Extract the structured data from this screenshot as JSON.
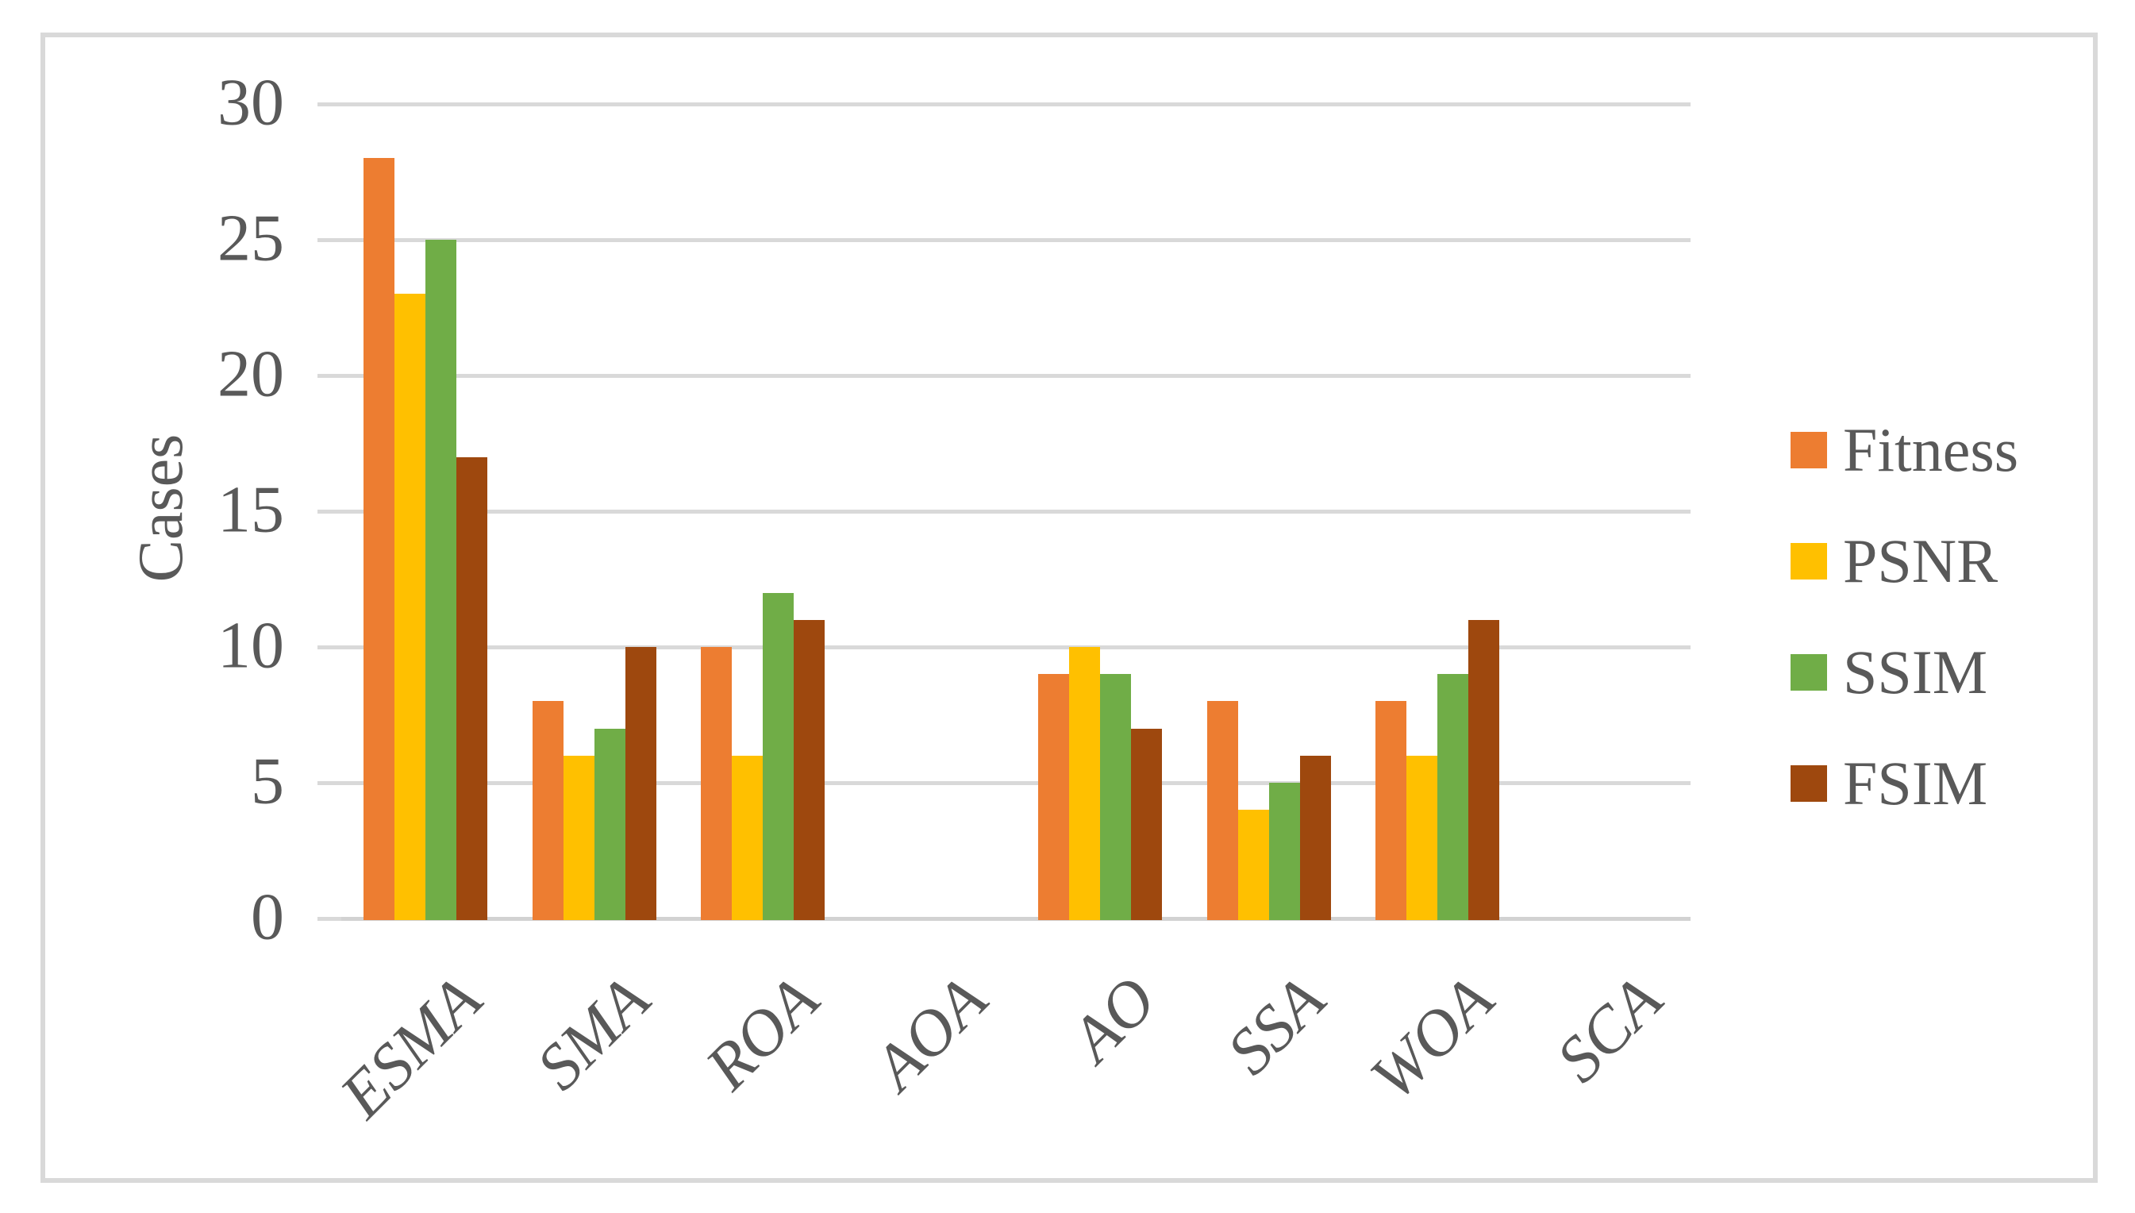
{
  "figure": {
    "background": "#FFFFFF",
    "border_color": "#D9D9D9"
  },
  "chart_data": {
    "type": "bar",
    "title": "",
    "xlabel": "",
    "ylabel": "Cases",
    "categories": [
      "ESMA",
      "SMA",
      "ROA",
      "AOA",
      "AO",
      "SSA",
      "WOA",
      "SCA"
    ],
    "series": [
      {
        "name": "Fitness",
        "color": "#ED7D31",
        "values": [
          28,
          8,
          10,
          0,
          9,
          8,
          8,
          0
        ]
      },
      {
        "name": "PSNR",
        "color": "#FFC000",
        "values": [
          23,
          6,
          6,
          0,
          10,
          4,
          6,
          0
        ]
      },
      {
        "name": "SSIM",
        "color": "#70AD47",
        "values": [
          25,
          7,
          12,
          0,
          9,
          5,
          9,
          0
        ]
      },
      {
        "name": "FSIM",
        "color": "#9E480E",
        "values": [
          17,
          10,
          11,
          0,
          7,
          6,
          11,
          0
        ]
      }
    ],
    "ylim": [
      0,
      30
    ],
    "yticks": [
      0,
      5,
      10,
      15,
      20,
      25,
      30
    ],
    "grid": "horizontal",
    "gridline_color": "#D9D9D9",
    "axis_line_color": "#D2D2D2",
    "axis_text_color": "#595959",
    "legend_position": "right",
    "category_label_rotation_deg": -45
  }
}
